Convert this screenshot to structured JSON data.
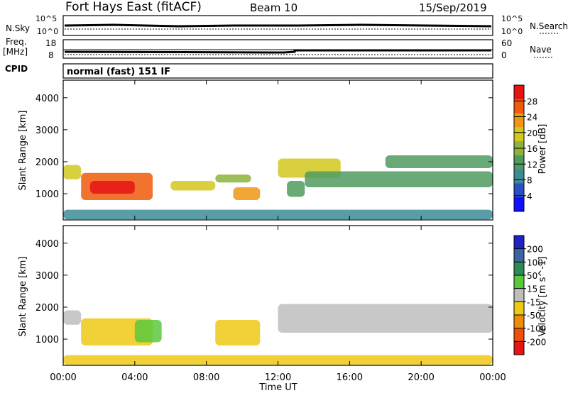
{
  "header": {
    "station": "Fort Hays East (fitACF)",
    "beam": "Beam 10",
    "date": "15/Sep/2019"
  },
  "noise_panel": {
    "left_label": "N.Sky",
    "left_ticks": [
      "10^5",
      "10^0"
    ],
    "right_label": "N.Search",
    "right_ticks": [
      "10^5",
      "10^0"
    ]
  },
  "freq_panel": {
    "left_label_line1": "Freq.",
    "left_label_line2": "[MHz]",
    "left_ticks": [
      "18",
      "8"
    ],
    "right_label": "Nave",
    "right_ticks": [
      "60",
      "0"
    ]
  },
  "cpid_panel": {
    "label": "CPID",
    "text": "normal (fast) 151 IF"
  },
  "chart_data": [
    {
      "type": "heatmap",
      "title": "",
      "ylabel": "Slant Range [km]",
      "xlabel": "",
      "ylim": [
        180,
        4550
      ],
      "yticks": [
        "1000",
        "2000",
        "3000",
        "4000"
      ],
      "xticks": [
        "00:00",
        "04:00",
        "08:00",
        "12:00",
        "16:00",
        "20:00",
        "00:00"
      ],
      "colorbar": {
        "label": "Power [dB]",
        "range": [
          0,
          32
        ],
        "ticks": [
          "4",
          "8",
          "12",
          "16",
          "20",
          "24",
          "28"
        ],
        "colors": [
          "#1010ff",
          "#2a50c8",
          "#3c8c96",
          "#4f9b5f",
          "#8cb43c",
          "#d2c81e",
          "#f09614",
          "#f05a0a",
          "#e61414"
        ]
      },
      "regions": [
        {
          "t": [
            0.0,
            1.0
          ],
          "r": [
            1450,
            1900
          ],
          "v": 18
        },
        {
          "t": [
            1.0,
            5.0
          ],
          "r": [
            800,
            1650
          ],
          "v": 26
        },
        {
          "t": [
            1.5,
            4.0
          ],
          "r": [
            1000,
            1400
          ],
          "v": 30
        },
        {
          "t": [
            6.0,
            8.5
          ],
          "r": [
            1100,
            1400
          ],
          "v": 18
        },
        {
          "t": [
            8.5,
            10.5
          ],
          "r": [
            1350,
            1600
          ],
          "v": 16
        },
        {
          "t": [
            9.5,
            11.0
          ],
          "r": [
            800,
            1200
          ],
          "v": 24
        },
        {
          "t": [
            12.0,
            15.5
          ],
          "r": [
            1500,
            2100
          ],
          "v": 18
        },
        {
          "t": [
            12.5,
            13.5
          ],
          "r": [
            900,
            1400
          ],
          "v": 14
        },
        {
          "t": [
            13.5,
            24.0
          ],
          "r": [
            1200,
            1700
          ],
          "v": 11
        },
        {
          "t": [
            18.0,
            24.0
          ],
          "r": [
            1800,
            2200
          ],
          "v": 14
        },
        {
          "t": [
            0.0,
            24.0
          ],
          "r": [
            200,
            500
          ],
          "v": 9
        }
      ]
    },
    {
      "type": "heatmap",
      "title": "",
      "ylabel": "Slant Range [km]",
      "xlabel": "Time UT",
      "ylim": [
        180,
        4550
      ],
      "yticks": [
        "1000",
        "2000",
        "3000",
        "4000"
      ],
      "xticks": [
        "00:00",
        "04:00",
        "08:00",
        "12:00",
        "16:00",
        "20:00",
        "00:00"
      ],
      "colorbar": {
        "label": "Velocity [m s^-1]",
        "range": [
          -250,
          250
        ],
        "ticks": [
          "200",
          "100",
          "50",
          "15",
          "-15",
          "-50",
          "-100",
          "-200"
        ],
        "colors": [
          "#2020c8",
          "#3c64a0",
          "#2e8b57",
          "#5ac83c",
          "#bebebe",
          "#f0c814",
          "#f08c0a",
          "#f0500a",
          "#e61414"
        ]
      },
      "regions": [
        {
          "t": [
            0.0,
            1.0
          ],
          "r": [
            1450,
            1900
          ],
          "v": 0
        },
        {
          "t": [
            1.0,
            5.0
          ],
          "r": [
            800,
            1650
          ],
          "v": -60
        },
        {
          "t": [
            4.0,
            5.5
          ],
          "r": [
            900,
            1600
          ],
          "v": 40
        },
        {
          "t": [
            8.5,
            11.0
          ],
          "r": [
            800,
            1600
          ],
          "v": -70
        },
        {
          "t": [
            12.0,
            24.0
          ],
          "r": [
            1200,
            2100
          ],
          "v": 0
        },
        {
          "t": [
            0.0,
            24.0
          ],
          "r": [
            200,
            500
          ],
          "v": -60
        }
      ]
    }
  ]
}
